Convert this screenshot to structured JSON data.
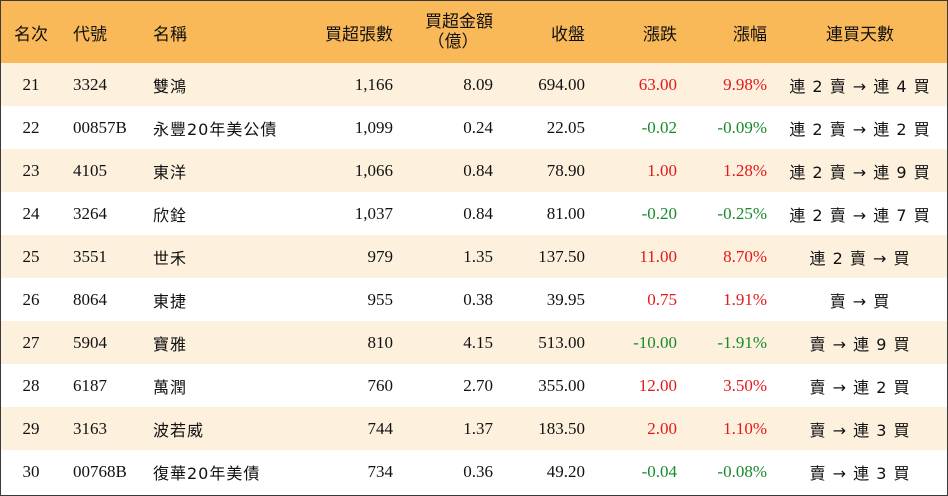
{
  "colors": {
    "header_bg": "#f9b959",
    "row_shaded": "#fdf1de",
    "row_plain": "#ffffff",
    "up": "#e0191c",
    "down": "#178a2c"
  },
  "headers": {
    "rank": "名次",
    "code": "代號",
    "name": "名稱",
    "net_buy_lots": "買超張數",
    "net_buy_amount_line1": "買超金額",
    "net_buy_amount_line2": "（億）",
    "close": "收盤",
    "change": "漲跌",
    "change_pct": "漲幅",
    "consecutive_days": "連買天數"
  },
  "rows": [
    {
      "rank": "21",
      "code": "3324",
      "name": "雙鴻",
      "lots": "1,166",
      "amount": "8.09",
      "close": "694.00",
      "change": "63.00",
      "pct": "9.98%",
      "direction": "up",
      "days": "連 2 賣 → 連 4 買"
    },
    {
      "rank": "22",
      "code": "00857B",
      "name": "永豐20年美公債",
      "lots": "1,099",
      "amount": "0.24",
      "close": "22.05",
      "change": "-0.02",
      "pct": "-0.09%",
      "direction": "down",
      "days": "連 2 賣 → 連 2 買"
    },
    {
      "rank": "23",
      "code": "4105",
      "name": "東洋",
      "lots": "1,066",
      "amount": "0.84",
      "close": "78.90",
      "change": "1.00",
      "pct": "1.28%",
      "direction": "up",
      "days": "連 2 賣 → 連 9 買"
    },
    {
      "rank": "24",
      "code": "3264",
      "name": "欣銓",
      "lots": "1,037",
      "amount": "0.84",
      "close": "81.00",
      "change": "-0.20",
      "pct": "-0.25%",
      "direction": "down",
      "days": "連 2 賣 → 連 7 買"
    },
    {
      "rank": "25",
      "code": "3551",
      "name": "世禾",
      "lots": "979",
      "amount": "1.35",
      "close": "137.50",
      "change": "11.00",
      "pct": "8.70%",
      "direction": "up",
      "days": "連 2 賣 → 買"
    },
    {
      "rank": "26",
      "code": "8064",
      "name": "東捷",
      "lots": "955",
      "amount": "0.38",
      "close": "39.95",
      "change": "0.75",
      "pct": "1.91%",
      "direction": "up",
      "days": "賣 → 買"
    },
    {
      "rank": "27",
      "code": "5904",
      "name": "寶雅",
      "lots": "810",
      "amount": "4.15",
      "close": "513.00",
      "change": "-10.00",
      "pct": "-1.91%",
      "direction": "down",
      "days": "賣 → 連 9 買"
    },
    {
      "rank": "28",
      "code": "6187",
      "name": "萬潤",
      "lots": "760",
      "amount": "2.70",
      "close": "355.00",
      "change": "12.00",
      "pct": "3.50%",
      "direction": "up",
      "days": "賣 → 連 2 買"
    },
    {
      "rank": "29",
      "code": "3163",
      "name": "波若威",
      "lots": "744",
      "amount": "1.37",
      "close": "183.50",
      "change": "2.00",
      "pct": "1.10%",
      "direction": "up",
      "days": "賣 → 連 3 買"
    },
    {
      "rank": "30",
      "code": "00768B",
      "name": "復華20年美債",
      "lots": "734",
      "amount": "0.36",
      "close": "49.20",
      "change": "-0.04",
      "pct": "-0.08%",
      "direction": "down",
      "days": "賣 → 連 3 買"
    }
  ]
}
